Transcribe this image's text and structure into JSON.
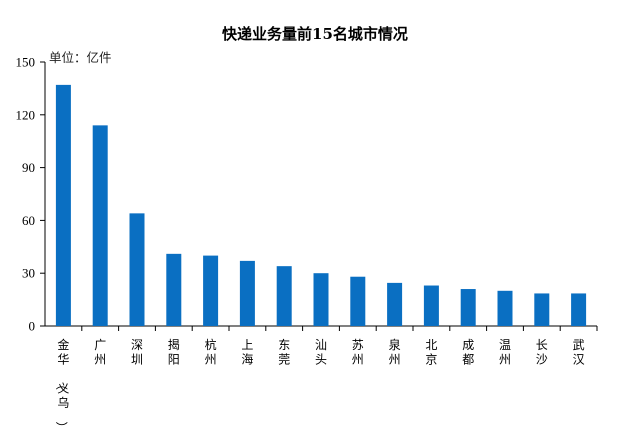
{
  "chart_data": {
    "type": "bar",
    "title": "快递业务量前15名城市情况",
    "unit_label": "单位：亿件",
    "categories": [
      "金华（义乌）",
      "广州",
      "深圳",
      "揭阳",
      "杭州",
      "上海",
      "东莞",
      "汕头",
      "苏州",
      "泉州",
      "北京",
      "成都",
      "温州",
      "长沙",
      "武汉"
    ],
    "values": [
      137,
      114,
      64,
      41,
      40,
      37,
      34,
      30,
      28,
      24.5,
      23,
      21,
      20,
      18.5,
      18.5
    ],
    "ylim": [
      0,
      150
    ],
    "yticks": [
      0,
      30,
      60,
      90,
      120,
      150
    ],
    "bar_color": "#0a6fc2",
    "grid": false,
    "legend": "none"
  }
}
